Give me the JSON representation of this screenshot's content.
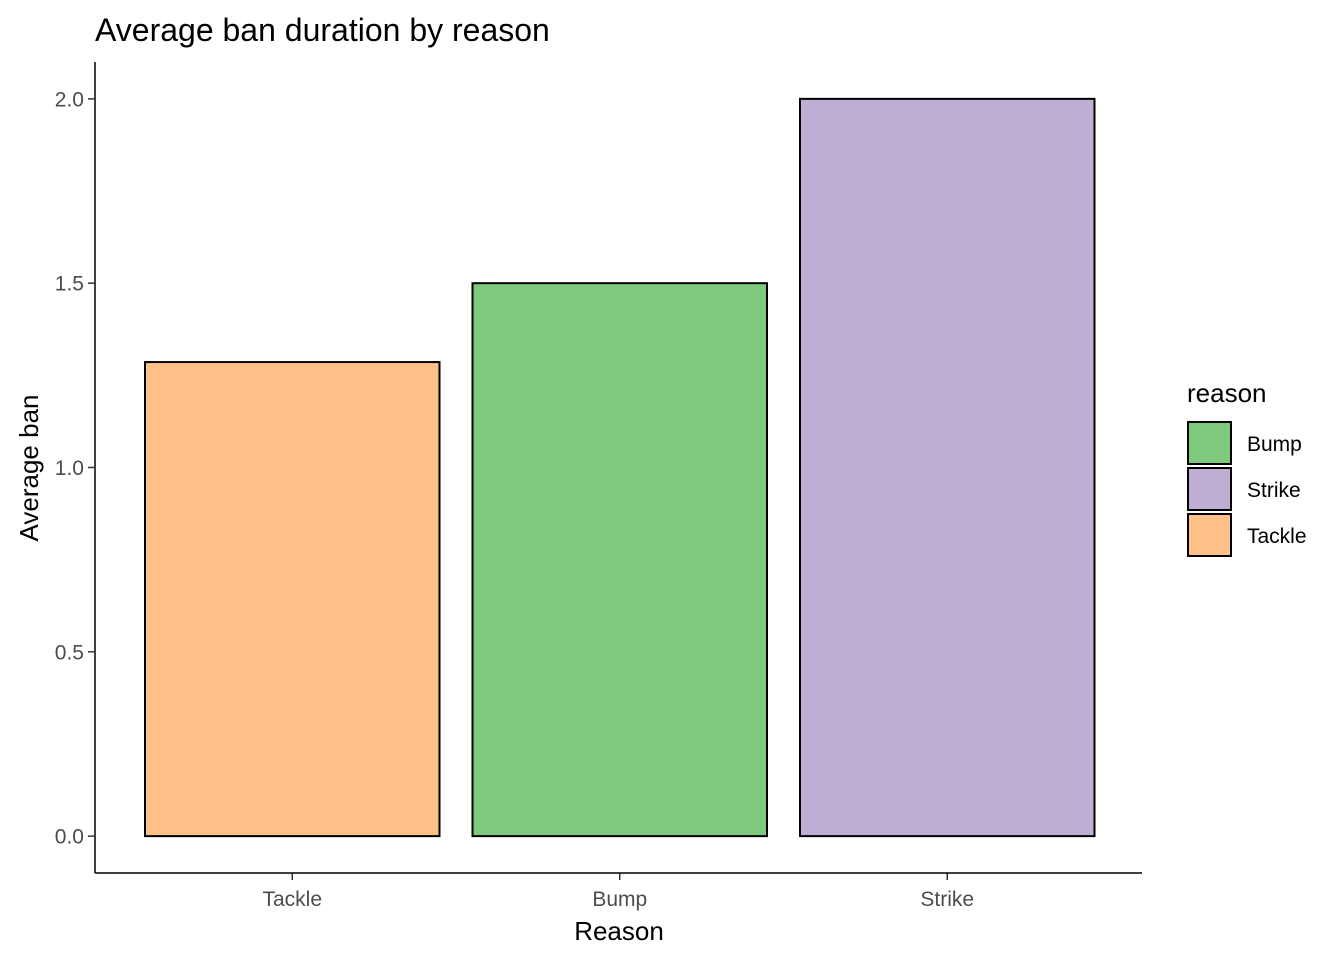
{
  "chart_data": {
    "type": "bar",
    "title": "Average ban duration by reason",
    "xlabel": "Reason",
    "ylabel": "Average ban",
    "categories": [
      "Tackle",
      "Bump",
      "Strike"
    ],
    "values": [
      1.286,
      1.5,
      2.0
    ],
    "colors": [
      "#fdc086",
      "#7fc97f",
      "#beaed4"
    ],
    "ylim": [
      -0.1,
      2.1
    ],
    "yticks": [
      0.0,
      0.5,
      1.0,
      1.5,
      2.0
    ],
    "ytick_labels": [
      "0.0",
      "0.5",
      "1.0",
      "1.5",
      "2.0"
    ],
    "grid": false,
    "legend": {
      "title": "reason",
      "placement": "right",
      "items": [
        {
          "label": "Bump",
          "color": "#7fc97f"
        },
        {
          "label": "Strike",
          "color": "#beaed4"
        },
        {
          "label": "Tackle",
          "color": "#fdc086"
        }
      ]
    }
  }
}
